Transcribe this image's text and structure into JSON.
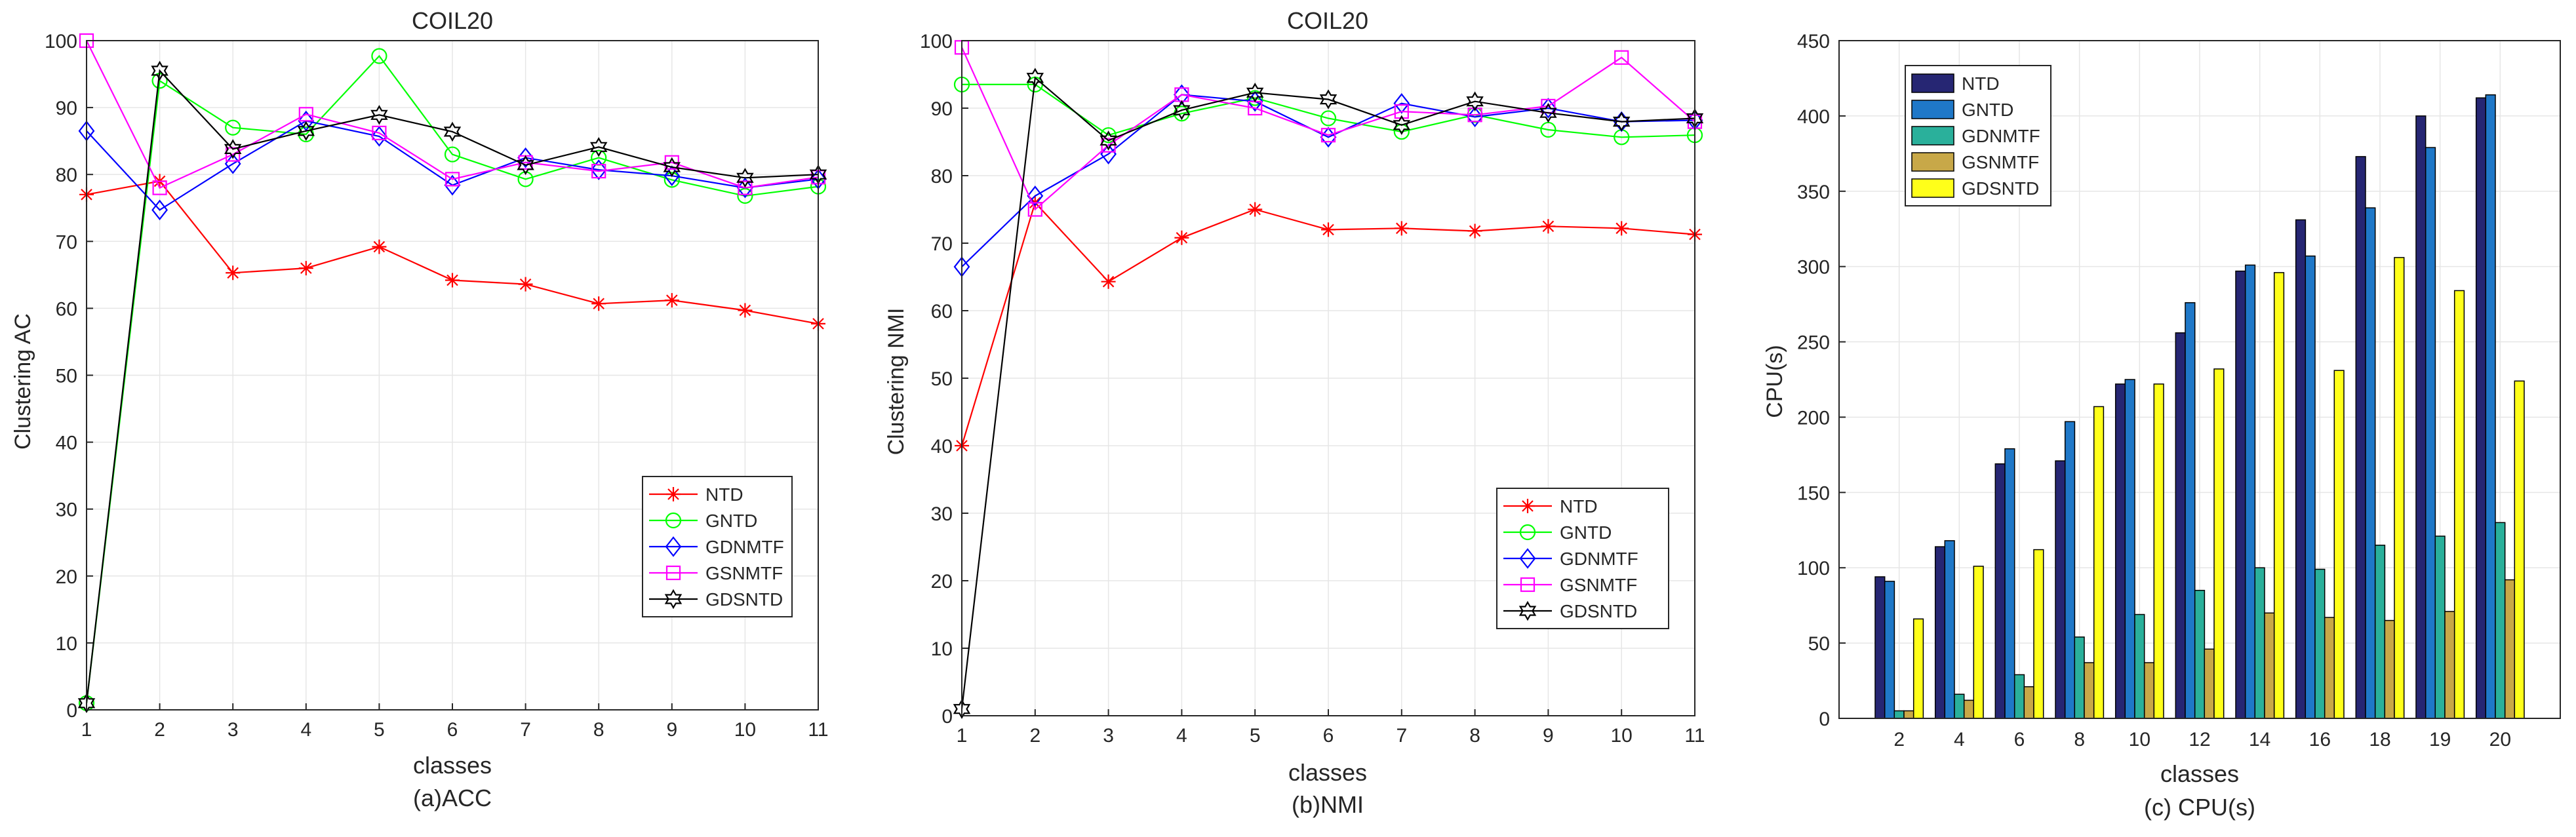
{
  "chart_data": [
    {
      "type": "line",
      "title": "COIL20",
      "xlabel": "classes",
      "ylabel": "Clustering AC",
      "caption": "(a)ACC",
      "xlim": [
        1,
        11
      ],
      "ylim": [
        0,
        100
      ],
      "xticks": [
        "1",
        "2",
        "3",
        "4",
        "5",
        "6",
        "7",
        "8",
        "9",
        "10",
        "11"
      ],
      "yticks": [
        "0",
        "10",
        "20",
        "30",
        "40",
        "50",
        "60",
        "70",
        "80",
        "90",
        "100"
      ],
      "grid": true,
      "legend_position": "lower-right",
      "x": [
        1,
        2,
        3,
        4,
        5,
        6,
        7,
        8,
        9,
        10,
        11
      ],
      "series": [
        {
          "name": "NTD",
          "color": "#ff0000",
          "marker": "star",
          "values": [
            77,
            79,
            65.3,
            66,
            69.2,
            64.2,
            63.6,
            60.7,
            61.2,
            59.7,
            57.7
          ]
        },
        {
          "name": "GNTD",
          "color": "#00ff00",
          "marker": "circle",
          "values": [
            1,
            94,
            87,
            86,
            97.7,
            83,
            79.3,
            82.5,
            79.2,
            76.8,
            78.2
          ]
        },
        {
          "name": "GDNMTF",
          "color": "#0000ff",
          "marker": "diamond",
          "values": [
            86.5,
            74.7,
            81.6,
            88,
            85.7,
            78.4,
            82.5,
            80.7,
            79.8,
            78,
            79.3
          ]
        },
        {
          "name": "GSNMTF",
          "color": "#ff00ff",
          "marker": "square",
          "values": [
            100,
            78,
            83,
            89,
            86.2,
            79.3,
            81.8,
            80.5,
            81.8,
            78,
            79.6
          ]
        },
        {
          "name": "GDSNTD",
          "color": "#000000",
          "marker": "hexagram",
          "values": [
            1,
            95.5,
            83.8,
            86.5,
            88.9,
            86.4,
            81.4,
            84.1,
            81.1,
            79.5,
            80
          ]
        }
      ]
    },
    {
      "type": "line",
      "title": "COIL20",
      "xlabel": "classes",
      "ylabel": "Clustering NMI",
      "caption": "(b)NMI",
      "xlim": [
        1,
        11
      ],
      "ylim": [
        0,
        100
      ],
      "xticks": [
        "1",
        "2",
        "3",
        "4",
        "5",
        "6",
        "7",
        "8",
        "9",
        "10",
        "11"
      ],
      "yticks": [
        "0",
        "10",
        "20",
        "30",
        "40",
        "50",
        "60",
        "70",
        "80",
        "90",
        "100"
      ],
      "grid": true,
      "legend_position": "lower-right",
      "x": [
        1,
        2,
        3,
        4,
        5,
        6,
        7,
        8,
        9,
        10,
        11
      ],
      "series": [
        {
          "name": "NTD",
          "color": "#ff0000",
          "marker": "star",
          "values": [
            40,
            76,
            64.3,
            70.8,
            75,
            72,
            72.2,
            71.8,
            72.5,
            72.2,
            71.3
          ]
        },
        {
          "name": "GNTD",
          "color": "#00ff00",
          "marker": "circle",
          "values": [
            93.5,
            93.5,
            86,
            89.2,
            91.5,
            88.5,
            86.5,
            89,
            86.8,
            85.7,
            86
          ]
        },
        {
          "name": "GDNMTF",
          "color": "#0000ff",
          "marker": "diamond",
          "values": [
            66.5,
            77,
            83.2,
            92,
            91,
            85.7,
            90.7,
            88.7,
            90,
            88,
            88.2
          ]
        },
        {
          "name": "GSNMTF",
          "color": "#ff00ff",
          "marker": "square",
          "values": [
            99,
            75,
            84.5,
            92,
            90,
            86,
            89.5,
            89,
            90.3,
            97.5,
            88
          ]
        },
        {
          "name": "GDSNTD",
          "color": "#000000",
          "marker": "hexagram",
          "values": [
            1,
            94.5,
            85.2,
            89.7,
            92.3,
            91.3,
            87.5,
            91,
            89.3,
            88,
            88.5
          ]
        }
      ]
    },
    {
      "type": "bar",
      "title": "",
      "xlabel": "classes",
      "ylabel": "CPU(s)",
      "caption": "(c) CPU(s)",
      "ylim": [
        0,
        450
      ],
      "yticks": [
        "0",
        "50",
        "100",
        "150",
        "200",
        "250",
        "300",
        "350",
        "400",
        "450"
      ],
      "grid": true,
      "legend_position": "top-left",
      "categories": [
        "2",
        "4",
        "6",
        "8",
        "10",
        "12",
        "14",
        "16",
        "18",
        "19",
        "20"
      ],
      "series": [
        {
          "name": "NTD",
          "color": "#262673",
          "values": [
            94,
            114,
            169,
            171,
            222,
            256,
            297,
            331,
            373,
            400,
            412
          ]
        },
        {
          "name": "GNTD",
          "color": "#1f78c8",
          "values": [
            91,
            118,
            179,
            197,
            225,
            276,
            301,
            307,
            339,
            379,
            414
          ]
        },
        {
          "name": "GDNMTF",
          "color": "#2ab09b",
          "values": [
            5,
            16,
            29,
            54,
            69,
            85,
            100,
            99,
            115,
            121,
            130
          ]
        },
        {
          "name": "GSNMTF",
          "color": "#c8a848",
          "values": [
            5,
            12,
            21,
            37,
            37,
            46,
            70,
            67,
            65,
            71,
            92
          ]
        },
        {
          "name": "GDSNTD",
          "color": "#ffff1a",
          "values": [
            66,
            101,
            112,
            207,
            222,
            232,
            296,
            231,
            306,
            284,
            224
          ]
        }
      ]
    }
  ]
}
